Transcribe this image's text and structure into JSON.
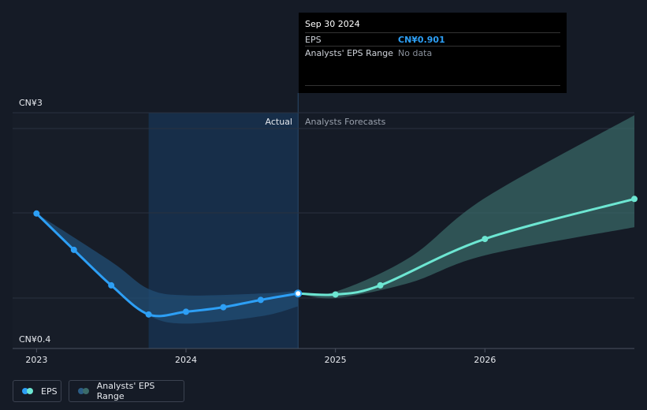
{
  "colors": {
    "background": "#151b26",
    "actual_line": "#2d9ff5",
    "forecast_line": "#6de6d2",
    "forecast_band": "#3b6b69",
    "actual_band": "#214e74",
    "highlight_region": "#173150",
    "grid": "#2a3140",
    "eps_value": "#2d9ff5"
  },
  "tooltip": {
    "date": "Sep 30 2024",
    "rows": [
      {
        "label": "EPS",
        "value": "CN¥0.901"
      },
      {
        "label": "Analysts' EPS Range",
        "value": "No data"
      }
    ]
  },
  "chart_data": {
    "type": "line",
    "y_label_top": "CN¥3",
    "y_label_bottom": "CN¥0.4",
    "ylim": [
      0.4,
      3
    ],
    "x_ticks": [
      {
        "label": "2023",
        "t": 2023.0
      },
      {
        "label": "2024",
        "t": 2024.0
      },
      {
        "label": "2025",
        "t": 2025.0
      },
      {
        "label": "2026",
        "t": 2026.0
      }
    ],
    "xlim": [
      2022.84,
      2027.0
    ],
    "section_labels": {
      "actual": "Actual",
      "forecast": "Analysts Forecasts"
    },
    "split_t": 2024.75,
    "highlight_start_t": 2023.75,
    "series": [
      {
        "name": "EPS",
        "points": [
          {
            "t": 2023.0,
            "v": 1.78
          },
          {
            "t": 2023.25,
            "v": 1.38
          },
          {
            "t": 2023.5,
            "v": 0.99
          },
          {
            "t": 2023.75,
            "v": 0.67
          },
          {
            "t": 2024.0,
            "v": 0.7
          },
          {
            "t": 2024.25,
            "v": 0.75
          },
          {
            "t": 2024.5,
            "v": 0.83
          },
          {
            "t": 2024.75,
            "v": 0.901
          }
        ]
      },
      {
        "name": "EPS Forecast",
        "points": [
          {
            "t": 2024.75,
            "v": 0.901
          },
          {
            "t": 2025.0,
            "v": 0.89
          },
          {
            "t": 2025.3,
            "v": 0.99
          },
          {
            "t": 2026.0,
            "v": 1.5
          },
          {
            "t": 2027.0,
            "v": 1.94
          }
        ]
      }
    ],
    "actual_band": {
      "upper": [
        {
          "t": 2023.0,
          "v": 1.78
        },
        {
          "t": 2023.5,
          "v": 1.25
        },
        {
          "t": 2023.75,
          "v": 0.95
        },
        {
          "t": 2024.0,
          "v": 0.88
        },
        {
          "t": 2024.5,
          "v": 0.9
        },
        {
          "t": 2024.75,
          "v": 0.93
        }
      ],
      "lower": [
        {
          "t": 2023.0,
          "v": 1.78
        },
        {
          "t": 2023.5,
          "v": 0.99
        },
        {
          "t": 2023.75,
          "v": 0.66
        },
        {
          "t": 2024.0,
          "v": 0.57
        },
        {
          "t": 2024.5,
          "v": 0.65
        },
        {
          "t": 2024.75,
          "v": 0.76
        }
      ]
    },
    "forecast_band": {
      "upper": [
        {
          "t": 2024.75,
          "v": 0.901
        },
        {
          "t": 2025.0,
          "v": 0.92
        },
        {
          "t": 2025.5,
          "v": 1.3
        },
        {
          "t": 2026.0,
          "v": 1.95
        },
        {
          "t": 2027.0,
          "v": 2.86
        }
      ],
      "lower": [
        {
          "t": 2024.75,
          "v": 0.901
        },
        {
          "t": 2025.0,
          "v": 0.85
        },
        {
          "t": 2025.5,
          "v": 1.02
        },
        {
          "t": 2026.0,
          "v": 1.32
        },
        {
          "t": 2027.0,
          "v": 1.63
        }
      ]
    }
  },
  "legend": {
    "eps_label": "EPS",
    "range_label": "Analysts' EPS Range"
  }
}
